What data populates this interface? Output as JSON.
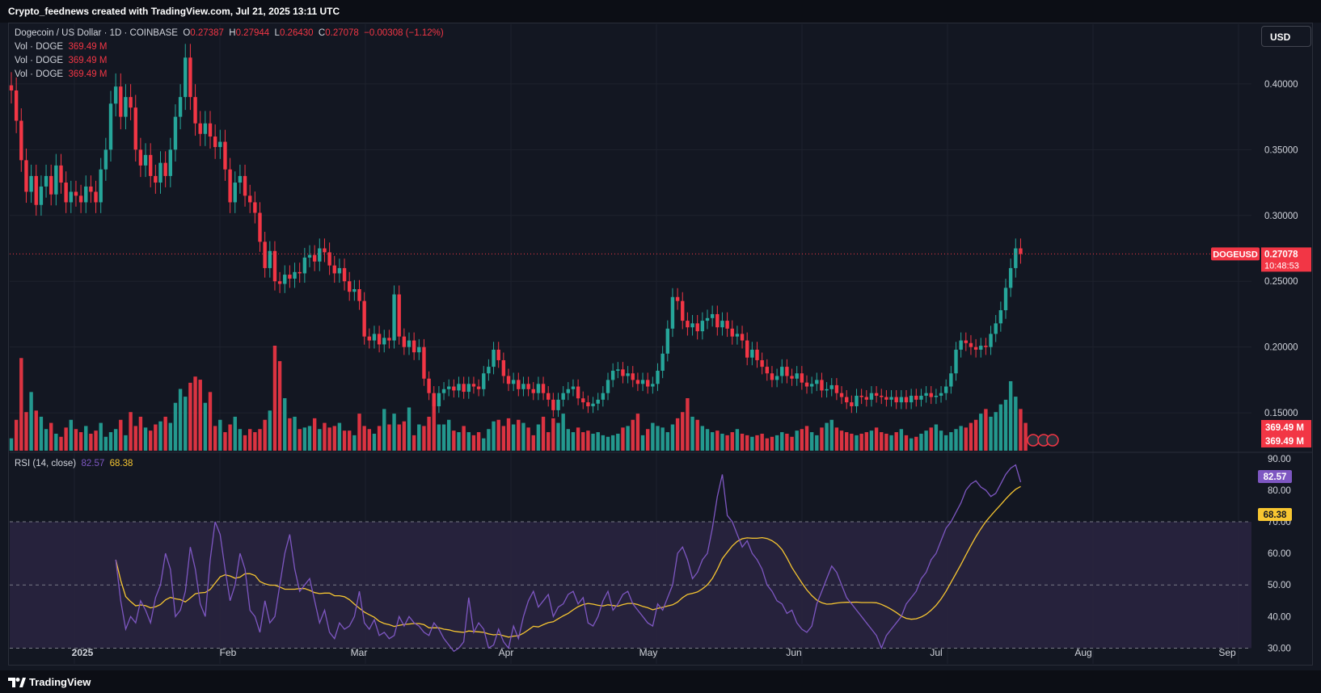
{
  "header": {
    "attribution": "Crypto_feednews created with TradingView.com, Jul 21, 2025 13:11 UTC"
  },
  "legend": {
    "symbol": "Dogecoin / US Dollar · 1D · COINBASE",
    "o_label": "O",
    "o": "0.27387",
    "h_label": "H",
    "h": "0.27944",
    "l_label": "L",
    "l": "0.26430",
    "c_label": "C",
    "c": "0.27078",
    "change": "−0.00308 (−1.12%)",
    "volumes": [
      {
        "label": "Vol · DOGE",
        "value": "369.49 M"
      },
      {
        "label": "Vol · DOGE",
        "value": "369.49 M"
      },
      {
        "label": "Vol · DOGE",
        "value": "369.49 M"
      }
    ]
  },
  "currency_button": "USD",
  "price_tag": {
    "symbol": "DOGEUSD",
    "price": "0.27078",
    "countdown": "10:48:53"
  },
  "volume_tags": [
    "369.49 M",
    "369.49 M"
  ],
  "rsi_legend": {
    "label": "RSI (14, close)",
    "rsi": "82.57",
    "ma": "68.38"
  },
  "rsi_tags": {
    "rsi": "82.57",
    "ma": "68.38"
  },
  "footer": {
    "brand": "TradingView"
  },
  "colors": {
    "up": "#26a69a",
    "down": "#f23645",
    "bg": "#131722",
    "rsi_line": "#7e57c2",
    "rsi_ma": "#f7c631",
    "rsi_band": "#2a2441"
  },
  "chart_data": {
    "type": "candlestick",
    "price_axis": {
      "min": 0.12,
      "max": 0.43,
      "ticks": [
        "0.40000",
        "0.35000",
        "0.30000",
        "0.25000",
        "0.20000",
        "0.15000"
      ]
    },
    "rsi_axis": {
      "min": 25,
      "max": 92,
      "ticks": [
        "90.00",
        "80.00",
        "70.00",
        "60.00",
        "50.00",
        "40.00",
        "30.00"
      ]
    },
    "x_labels": [
      "2025",
      "Feb",
      "Mar",
      "Apr",
      "May",
      "Jun",
      "Jul",
      "Aug",
      "Sep"
    ],
    "last_close": 0.27078,
    "closes": [
      0.395,
      0.372,
      0.342,
      0.318,
      0.33,
      0.308,
      0.322,
      0.33,
      0.316,
      0.338,
      0.325,
      0.31,
      0.318,
      0.315,
      0.31,
      0.322,
      0.318,
      0.31,
      0.335,
      0.35,
      0.385,
      0.398,
      0.375,
      0.39,
      0.382,
      0.35,
      0.338,
      0.346,
      0.33,
      0.325,
      0.34,
      0.33,
      0.35,
      0.375,
      0.39,
      0.42,
      0.39,
      0.37,
      0.362,
      0.37,
      0.36,
      0.352,
      0.356,
      0.335,
      0.31,
      0.325,
      0.33,
      0.315,
      0.31,
      0.302,
      0.28,
      0.26,
      0.273,
      0.25,
      0.248,
      0.255,
      0.252,
      0.257,
      0.256,
      0.268,
      0.27,
      0.265,
      0.275,
      0.272,
      0.262,
      0.256,
      0.26,
      0.25,
      0.242,
      0.244,
      0.235,
      0.208,
      0.205,
      0.21,
      0.202,
      0.207,
      0.205,
      0.24,
      0.208,
      0.2,
      0.205,
      0.196,
      0.2,
      0.176,
      0.165,
      0.155,
      0.165,
      0.168,
      0.17,
      0.167,
      0.172,
      0.166,
      0.172,
      0.17,
      0.168,
      0.18,
      0.185,
      0.198,
      0.19,
      0.178,
      0.172,
      0.175,
      0.168,
      0.172,
      0.168,
      0.165,
      0.172,
      0.165,
      0.16,
      0.152,
      0.16,
      0.165,
      0.168,
      0.17,
      0.161,
      0.158,
      0.155,
      0.157,
      0.16,
      0.165,
      0.175,
      0.182,
      0.183,
      0.178,
      0.18,
      0.175,
      0.172,
      0.175,
      0.17,
      0.172,
      0.182,
      0.195,
      0.214,
      0.238,
      0.235,
      0.22,
      0.215,
      0.218,
      0.212,
      0.22,
      0.222,
      0.225,
      0.215,
      0.22,
      0.214,
      0.208,
      0.21,
      0.205,
      0.192,
      0.198,
      0.19,
      0.185,
      0.18,
      0.175,
      0.178,
      0.185,
      0.178,
      0.176,
      0.18,
      0.173,
      0.17,
      0.172,
      0.175,
      0.167,
      0.168,
      0.171,
      0.165,
      0.162,
      0.158,
      0.155,
      0.163,
      0.162,
      0.16,
      0.165,
      0.163,
      0.162,
      0.16,
      0.162,
      0.158,
      0.162,
      0.158,
      0.163,
      0.16,
      0.163,
      0.165,
      0.162,
      0.163,
      0.165,
      0.17,
      0.18,
      0.198,
      0.205,
      0.203,
      0.2,
      0.198,
      0.201,
      0.2,
      0.21,
      0.218,
      0.228,
      0.245,
      0.26,
      0.275,
      0.27078
    ],
    "volumes": [
      8,
      20,
      60,
      25,
      38,
      26,
      22,
      14,
      18,
      11,
      9,
      15,
      20,
      14,
      12,
      16,
      11,
      13,
      18,
      9,
      12,
      14,
      20,
      10,
      25,
      16,
      22,
      15,
      13,
      17,
      19,
      22,
      18,
      31,
      40,
      35,
      44,
      48,
      46,
      31,
      38,
      16,
      20,
      12,
      17,
      22,
      14,
      10,
      14,
      12,
      14,
      20,
      26,
      68,
      58,
      34,
      21,
      22,
      14,
      15,
      16,
      21,
      14,
      18,
      15,
      16,
      18,
      13,
      13,
      10,
      24,
      16,
      14,
      11,
      16,
      27,
      17,
      24,
      17,
      19,
      28,
      10,
      17,
      16,
      22,
      33,
      17,
      17,
      20,
      13,
      12,
      16,
      12,
      10,
      12,
      8,
      14,
      19,
      20,
      16,
      21,
      17,
      20,
      18,
      15,
      10,
      17,
      22,
      12,
      21,
      18,
      24,
      14,
      12,
      15,
      12,
      13,
      11,
      12,
      10,
      9,
      10,
      11,
      15,
      16,
      20,
      24,
      10,
      14,
      18,
      16,
      15,
      12,
      17,
      21,
      25,
      34,
      22,
      20,
      16,
      14,
      12,
      13,
      11,
      10,
      12,
      14,
      11,
      10,
      9,
      10,
      11,
      8,
      9,
      10,
      12,
      11,
      9,
      13,
      14,
      16,
      12,
      10,
      15,
      18,
      20,
      15,
      13,
      12,
      11,
      10,
      11,
      12,
      13,
      15,
      12,
      11,
      10,
      12,
      14,
      10,
      8,
      9,
      11,
      13,
      15,
      17,
      13,
      10,
      12,
      14,
      16,
      15,
      18,
      20,
      24,
      27,
      22,
      25,
      30,
      33,
      45,
      35,
      27,
      18
    ],
    "rsi": [
      58,
      45,
      36,
      40,
      38,
      45,
      42,
      38,
      46,
      50,
      60,
      55,
      40,
      42,
      48,
      62,
      55,
      44,
      40,
      58,
      70,
      66,
      55,
      45,
      50,
      60,
      55,
      42,
      40,
      35,
      45,
      38,
      40,
      50,
      60,
      66,
      55,
      48,
      50,
      52,
      45,
      38,
      42,
      35,
      33,
      38,
      36,
      37,
      40,
      48,
      38,
      36,
      39,
      34,
      35,
      33,
      34,
      40,
      37,
      40,
      38,
      37,
      35,
      34,
      38,
      36,
      33,
      31,
      29,
      30,
      32,
      46,
      35,
      38,
      36,
      30,
      31,
      36,
      32,
      30,
      37,
      33,
      40,
      45,
      48,
      43,
      45,
      47,
      40,
      43,
      44,
      47,
      48,
      44,
      46,
      38,
      37,
      40,
      45,
      48,
      42,
      44,
      47,
      48,
      44,
      42,
      40,
      38,
      37,
      44,
      42,
      46,
      50,
      60,
      62,
      58,
      52,
      54,
      58,
      60,
      68,
      78,
      85,
      72,
      70,
      66,
      62,
      64,
      60,
      58,
      55,
      50,
      48,
      45,
      44,
      41,
      42,
      38,
      36,
      35,
      37,
      44,
      48,
      52,
      56,
      54,
      50,
      46,
      44,
      42,
      40,
      38,
      36,
      34,
      30,
      34,
      36,
      38,
      40,
      44,
      46,
      48,
      52,
      54,
      58,
      60,
      64,
      68,
      70,
      73,
      76,
      80,
      82,
      83,
      81,
      80,
      78,
      79,
      82,
      85,
      87,
      88,
      82.57
    ]
  }
}
